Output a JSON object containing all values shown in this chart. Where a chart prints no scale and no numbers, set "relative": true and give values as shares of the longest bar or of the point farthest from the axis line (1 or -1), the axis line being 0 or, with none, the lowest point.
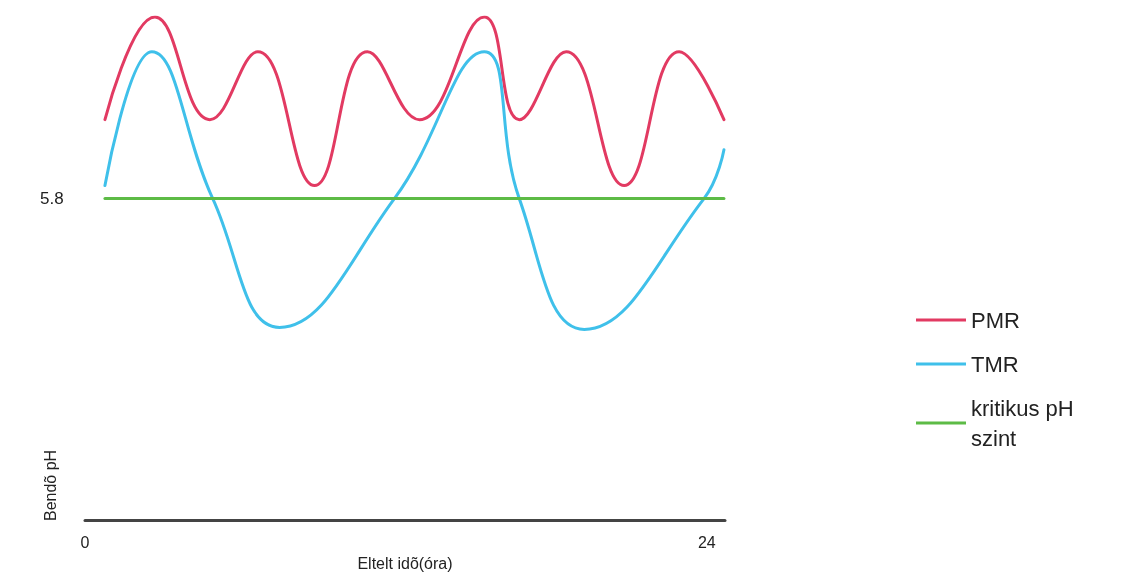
{
  "chart_data": {
    "type": "line",
    "xlabel": "Eltelt idõ(óra)",
    "ylabel": "Bendõ pH",
    "relative": true,
    "xlim": [
      0,
      24.7
    ],
    "xticks": [
      0,
      24
    ],
    "grid": false,
    "legend": "right",
    "marker": "none",
    "line_style": "solid",
    "annotations": [
      "5.8"
    ],
    "series": [
      {
        "name": "PMR",
        "color": "#e23a62",
        "x": [
          0.77,
          2.7,
          4.82,
          6.67,
          8.86,
          10.9,
          12.91,
          15.41,
          16.76,
          18.57,
          20.81,
          22.93,
          24.66
        ],
        "values": [
          0.796,
          1.0,
          0.796,
          0.931,
          0.665,
          0.931,
          0.796,
          1.0,
          0.796,
          0.931,
          0.665,
          0.931,
          0.796
        ]
      },
      {
        "name": "TMR",
        "color": "#3fc0ea",
        "x": [
          0.77,
          2.58,
          4.93,
          7.51,
          11.94,
          15.41,
          16.76,
          19.27,
          23.89,
          24.66
        ],
        "values": [
          0.665,
          0.931,
          0.639,
          0.383,
          0.639,
          0.931,
          0.639,
          0.379,
          0.639,
          0.736
        ]
      },
      {
        "name": "kritikus pH szint",
        "color": "#5dbb46",
        "x": [
          0.77,
          24.66
        ],
        "values": [
          0.639,
          0.639
        ]
      }
    ]
  }
}
